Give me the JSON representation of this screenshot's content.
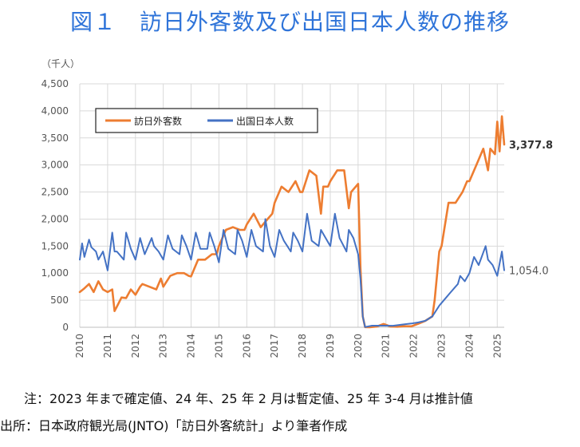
{
  "title": "図１　訪日外客数及び出国日本人数の推移",
  "note": "注：2023 年まで確定値、24 年、25 年 2 月は暫定値、25 年 3-4 月は推計値",
  "source": "出所：日本政府観光局(JNTO)「訪日外客統計」より筆者作成",
  "colors": {
    "visitors": "#ed7d31",
    "departures": "#4472c4",
    "grid": "#d9d9d9",
    "axis": "#bfbfbf"
  },
  "chart_data": {
    "type": "line",
    "unit_label": "（千人）",
    "ylim": [
      0,
      4500
    ],
    "yticks": [
      "0",
      "500",
      "1,000",
      "1,500",
      "2,000",
      "2,500",
      "3,000",
      "3,500",
      "4,000",
      "4,500"
    ],
    "xlim": [
      "2010-01",
      "2025-04"
    ],
    "xticks": [
      "2010",
      "2011",
      "2012",
      "2013",
      "2014",
      "2015",
      "2016",
      "2017",
      "2018",
      "2019",
      "2020",
      "2021",
      "2022",
      "2023",
      "2024",
      "2025"
    ],
    "grid": "vertical and horizontal",
    "legend_position": "top-left",
    "series": [
      {
        "name": "訪日外客数",
        "color": "#ed7d31",
        "end_label": "3,377.8",
        "x": [
          "2010-01",
          "2010-03",
          "2010-05",
          "2010-07",
          "2010-09",
          "2010-11",
          "2011-01",
          "2011-03",
          "2011-04",
          "2011-05",
          "2011-07",
          "2011-09",
          "2011-11",
          "2012-01",
          "2012-03",
          "2012-04",
          "2012-07",
          "2012-10",
          "2012-12",
          "2013-01",
          "2013-04",
          "2013-07",
          "2013-10",
          "2013-12",
          "2014-01",
          "2014-04",
          "2014-07",
          "2014-10",
          "2014-12",
          "2015-01",
          "2015-04",
          "2015-07",
          "2015-10",
          "2015-12",
          "2016-01",
          "2016-04",
          "2016-07",
          "2016-10",
          "2016-12",
          "2017-01",
          "2017-04",
          "2017-07",
          "2017-10",
          "2017-12",
          "2018-01",
          "2018-04",
          "2018-07",
          "2018-09",
          "2018-10",
          "2018-12",
          "2019-01",
          "2019-04",
          "2019-07",
          "2019-09",
          "2019-10",
          "2019-12",
          "2020-01",
          "2020-02",
          "2020-03",
          "2020-04",
          "2020-06",
          "2020-09",
          "2020-12",
          "2021-03",
          "2021-06",
          "2021-09",
          "2021-12",
          "2022-03",
          "2022-06",
          "2022-09",
          "2022-10",
          "2022-12",
          "2023-01",
          "2023-04",
          "2023-07",
          "2023-10",
          "2023-12",
          "2024-01",
          "2024-04",
          "2024-07",
          "2024-09",
          "2024-10",
          "2024-12",
          "2025-01",
          "2025-02",
          "2025-03",
          "2025-04"
        ],
        "y": [
          650,
          720,
          800,
          650,
          850,
          700,
          650,
          700,
          300,
          380,
          550,
          540,
          700,
          600,
          750,
          800,
          750,
          700,
          900,
          750,
          950,
          1000,
          1000,
          950,
          940,
          1250,
          1250,
          1350,
          1350,
          1500,
          1800,
          1850,
          1800,
          1800,
          1900,
          2100,
          1850,
          2000,
          2100,
          2300,
          2600,
          2500,
          2700,
          2500,
          2500,
          2900,
          2800,
          2100,
          2600,
          2600,
          2700,
          2900,
          2900,
          2200,
          2500,
          2600,
          2650,
          1100,
          200,
          3,
          2,
          14,
          60,
          13,
          10,
          20,
          18,
          66,
          120,
          200,
          500,
          1400,
          1500,
          2300,
          2300,
          2500,
          2700,
          2700,
          3000,
          3300,
          2900,
          3300,
          3200,
          3800,
          3250,
          3900,
          3377.8
        ]
      },
      {
        "name": "出国日本人数",
        "color": "#4472c4",
        "end_label": "1,054.0",
        "x": [
          "2010-01",
          "2010-02",
          "2010-03",
          "2010-05",
          "2010-06",
          "2010-08",
          "2010-09",
          "2010-11",
          "2011-01",
          "2011-03",
          "2011-04",
          "2011-05",
          "2011-08",
          "2011-09",
          "2011-11",
          "2012-01",
          "2012-03",
          "2012-05",
          "2012-08",
          "2012-09",
          "2012-11",
          "2013-01",
          "2013-03",
          "2013-05",
          "2013-08",
          "2013-09",
          "2013-11",
          "2014-01",
          "2014-03",
          "2014-05",
          "2014-08",
          "2014-09",
          "2014-11",
          "2015-01",
          "2015-03",
          "2015-05",
          "2015-08",
          "2015-09",
          "2015-11",
          "2016-01",
          "2016-03",
          "2016-05",
          "2016-08",
          "2016-09",
          "2016-11",
          "2017-01",
          "2017-03",
          "2017-05",
          "2017-08",
          "2017-09",
          "2017-11",
          "2018-01",
          "2018-03",
          "2018-05",
          "2018-08",
          "2018-09",
          "2018-11",
          "2019-01",
          "2019-03",
          "2019-05",
          "2019-08",
          "2019-09",
          "2019-11",
          "2020-01",
          "2020-02",
          "2020-03",
          "2020-04",
          "2020-07",
          "2020-10",
          "2021-01",
          "2021-04",
          "2021-08",
          "2021-12",
          "2022-03",
          "2022-06",
          "2022-09",
          "2022-12",
          "2023-03",
          "2023-05",
          "2023-08",
          "2023-09",
          "2023-11",
          "2024-01",
          "2024-03",
          "2024-05",
          "2024-08",
          "2024-09",
          "2024-11",
          "2025-01",
          "2025-03",
          "2025-04"
        ],
        "y": [
          1250,
          1550,
          1300,
          1620,
          1480,
          1400,
          1250,
          1400,
          1050,
          1750,
          1400,
          1400,
          1250,
          1750,
          1450,
          1250,
          1650,
          1350,
          1650,
          1500,
          1400,
          1250,
          1700,
          1450,
          1350,
          1700,
          1500,
          1250,
          1750,
          1450,
          1450,
          1750,
          1500,
          1200,
          1800,
          1450,
          1350,
          1800,
          1600,
          1300,
          1800,
          1500,
          1400,
          2000,
          1500,
          1300,
          1800,
          1600,
          1400,
          1750,
          1600,
          1400,
          2100,
          1600,
          1500,
          1800,
          1650,
          1500,
          2100,
          1650,
          1400,
          1800,
          1650,
          1350,
          900,
          200,
          4,
          30,
          30,
          30,
          28,
          50,
          70,
          90,
          120,
          200,
          400,
          550,
          650,
          800,
          950,
          850,
          1000,
          1300,
          1150,
          1500,
          1250,
          1150,
          950,
          1400,
          1054.0
        ]
      }
    ]
  }
}
